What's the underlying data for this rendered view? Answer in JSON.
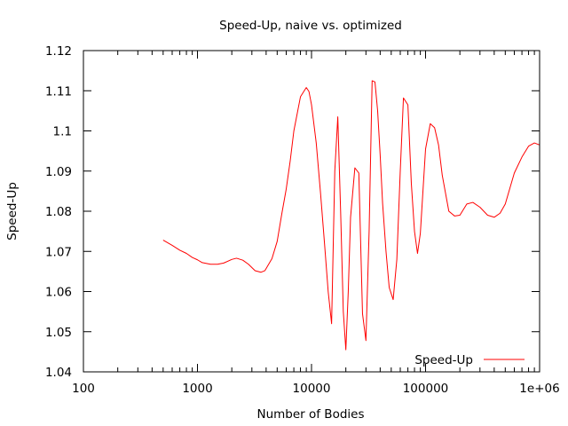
{
  "chart_data": {
    "type": "line",
    "title": "Speed-Up, naive vs. optimized",
    "xlabel": "Number of Bodies",
    "ylabel": "Speed-Up",
    "xscale": "log",
    "xlim": [
      100,
      1000000
    ],
    "ylim": [
      1.04,
      1.12
    ],
    "x_ticks": [
      {
        "value": 100,
        "label": "100"
      },
      {
        "value": 1000,
        "label": "1000"
      },
      {
        "value": 10000,
        "label": "10000"
      },
      {
        "value": 100000,
        "label": "100000"
      },
      {
        "value": 1000000,
        "label": "1e+06"
      }
    ],
    "y_ticks": [
      {
        "value": 1.04,
        "label": "1.04"
      },
      {
        "value": 1.05,
        "label": "1.05"
      },
      {
        "value": 1.06,
        "label": "1.06"
      },
      {
        "value": 1.07,
        "label": "1.07"
      },
      {
        "value": 1.08,
        "label": "1.08"
      },
      {
        "value": 1.09,
        "label": "1.09"
      },
      {
        "value": 1.1,
        "label": "1.1"
      },
      {
        "value": 1.11,
        "label": "1.11"
      },
      {
        "value": 1.12,
        "label": "1.12"
      }
    ],
    "grid": false,
    "legend": "bottom-right",
    "series": [
      {
        "name": "Speed-Up",
        "color": "#ff0000",
        "x": [
          500,
          600,
          700,
          800,
          900,
          1000,
          1100,
          1300,
          1500,
          1700,
          2000,
          2200,
          2500,
          2800,
          3200,
          3600,
          3900,
          4500,
          5000,
          5500,
          6000,
          6500,
          7000,
          8000,
          9000,
          9500,
          10000,
          11000,
          12000,
          13000,
          14000,
          15000,
          16000,
          17000,
          18000,
          19000,
          20000,
          21000,
          22000,
          24000,
          26000,
          28000,
          30000,
          32000,
          34000,
          36000,
          38000,
          40000,
          42000,
          45000,
          48000,
          52000,
          56000,
          60000,
          64000,
          70000,
          75000,
          80000,
          85000,
          90000,
          100000,
          110000,
          120000,
          130000,
          140000,
          160000,
          180000,
          200000,
          230000,
          260000,
          300000,
          350000,
          400000,
          450000,
          500000,
          600000,
          700000,
          800000,
          900000,
          1000000
        ],
        "y": [
          1.0728,
          1.0715,
          1.0703,
          1.0695,
          1.0685,
          1.0679,
          1.0672,
          1.0668,
          1.0668,
          1.0671,
          1.068,
          1.0683,
          1.0678,
          1.0668,
          1.0652,
          1.0648,
          1.0652,
          1.0682,
          1.0725,
          1.0795,
          1.0855,
          1.0925,
          1.1,
          1.1085,
          1.1108,
          1.1098,
          1.1065,
          1.097,
          1.0845,
          1.072,
          1.06,
          1.052,
          1.09,
          1.1035,
          1.08,
          1.055,
          1.0455,
          1.06,
          1.0785,
          1.0908,
          1.0895,
          1.0545,
          1.0478,
          1.075,
          1.1125,
          1.1122,
          1.105,
          1.094,
          1.082,
          1.07,
          1.061,
          1.058,
          1.068,
          1.09,
          1.1082,
          1.1065,
          1.087,
          1.075,
          1.0695,
          1.0745,
          1.0955,
          1.1018,
          1.1008,
          1.0965,
          1.089,
          1.08,
          1.0788,
          1.079,
          1.0818,
          1.0822,
          1.081,
          1.079,
          1.0785,
          1.0795,
          1.0818,
          1.0895,
          1.0935,
          1.0962,
          1.097,
          1.0965
        ]
      }
    ]
  }
}
